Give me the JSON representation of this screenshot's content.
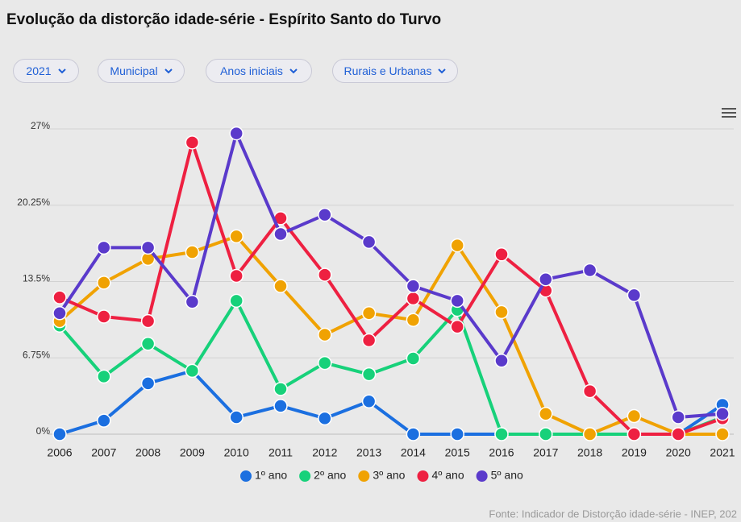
{
  "filters": [
    "2021",
    "Municipal",
    "Anos iniciais",
    "Rurais e Urbanas"
  ],
  "chart_data": {
    "type": "line",
    "title": "Evolução da distorção idade-série - Espírito Santo do Turvo",
    "source": "Fonte: Indicador de Distorção idade-série - INEP, 202",
    "categories": [
      "2006",
      "2007",
      "2008",
      "2009",
      "2010",
      "2011",
      "2012",
      "2013",
      "2014",
      "2015",
      "2016",
      "2017",
      "2018",
      "2019",
      "2020",
      "2021"
    ],
    "ylim": [
      0,
      27
    ],
    "yticks": [
      {
        "value": 0,
        "label": "0%"
      },
      {
        "value": 6.75,
        "label": "6.75%"
      },
      {
        "value": 13.5,
        "label": "13.5%"
      },
      {
        "value": 20.25,
        "label": "20.25%"
      },
      {
        "value": 27,
        "label": "27%"
      }
    ],
    "grid": true,
    "series": [
      {
        "name": "1º ano",
        "color": "#1b6fe0",
        "values": [
          0,
          1.2,
          4.5,
          5.6,
          1.5,
          2.5,
          1.4,
          2.9,
          0,
          0,
          0,
          0,
          0,
          0,
          0,
          2.6
        ]
      },
      {
        "name": "2º ano",
        "color": "#17d17a",
        "values": [
          9.6,
          5.1,
          8.0,
          5.6,
          11.8,
          4.0,
          6.3,
          5.3,
          6.7,
          11.0,
          0,
          0,
          0,
          0,
          0,
          1.5
        ]
      },
      {
        "name": "3º ano",
        "color": "#f0a202",
        "values": [
          10.0,
          13.4,
          15.5,
          16.1,
          17.5,
          13.1,
          8.8,
          10.7,
          10.1,
          16.7,
          10.8,
          1.8,
          0,
          1.6,
          0,
          0
        ]
      },
      {
        "name": "4º ano",
        "color": "#ee2041",
        "values": [
          12.1,
          10.4,
          10.0,
          25.8,
          14.0,
          19.1,
          14.1,
          8.3,
          12.0,
          9.5,
          15.9,
          12.7,
          3.8,
          0,
          0,
          1.4
        ]
      },
      {
        "name": "5º ano",
        "color": "#5a3acb",
        "values": [
          10.7,
          16.5,
          16.5,
          11.7,
          26.6,
          17.7,
          19.4,
          17.0,
          13.1,
          11.8,
          6.5,
          13.7,
          14.5,
          12.3,
          1.5,
          1.8
        ]
      }
    ]
  }
}
